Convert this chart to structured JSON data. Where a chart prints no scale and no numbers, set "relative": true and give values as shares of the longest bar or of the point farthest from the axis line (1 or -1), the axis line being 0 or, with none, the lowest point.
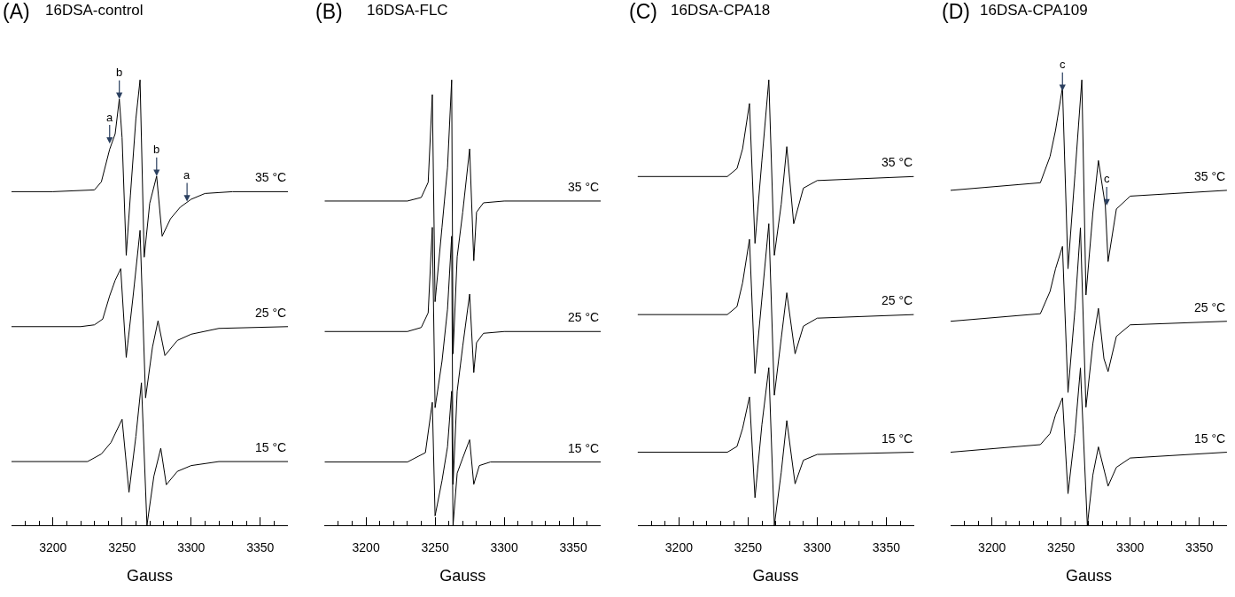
{
  "chart_data": [
    {
      "type": "line",
      "title": "16DSA-control",
      "xlabel": "Gauss",
      "relative": true,
      "xlim": [
        3170,
        3370
      ],
      "legend": false,
      "tick_labels": "x",
      "xticks": [
        {
          "value": 3180,
          "label": null
        },
        {
          "value": 3190,
          "label": null
        },
        3200,
        {
          "value": 3210,
          "label": null
        },
        {
          "value": 3220,
          "label": null
        },
        {
          "value": 3230,
          "label": null
        },
        {
          "value": 3240,
          "label": null
        },
        3250,
        {
          "value": 3260,
          "label": null
        },
        {
          "value": 3270,
          "label": null
        },
        {
          "value": 3280,
          "label": null
        },
        {
          "value": 3290,
          "label": null
        },
        3300,
        {
          "value": 3310,
          "label": null
        },
        {
          "value": 3320,
          "label": null
        },
        {
          "value": 3330,
          "label": null
        },
        {
          "value": 3340,
          "label": null
        },
        3350,
        {
          "value": 3360,
          "label": null
        }
      ],
      "annotations": [
        "(A)",
        {
          "text": "a",
          "x": 3241,
          "y": 0.857
        },
        {
          "text": "b",
          "x": 3248,
          "y": 0.957
        },
        {
          "text": "b",
          "x": 3275,
          "y": 0.784
        },
        {
          "text": "a",
          "x": 3297,
          "y": 0.727
        }
      ],
      "series": [
        {
          "name": "35 °C",
          "color": "#000000",
          "x": [
            3170,
            3200,
            3230,
            3235,
            3241,
            3245,
            3248,
            3250,
            3253,
            3256,
            3260,
            3263,
            3266,
            3270,
            3275,
            3279,
            3285,
            3292,
            3300,
            3310,
            3330,
            3370
          ],
          "values": [
            0.749,
            0.749,
            0.753,
            0.771,
            0.844,
            0.879,
            0.957,
            0.87,
            0.606,
            0.74,
            0.913,
            1.0,
            0.602,
            0.723,
            0.784,
            0.649,
            0.688,
            0.714,
            0.732,
            0.745,
            0.749,
            0.749
          ]
        },
        {
          "name": "25 °C",
          "color": "#000000",
          "x": [
            3170,
            3220,
            3230,
            3236,
            3241,
            3245,
            3249,
            3253,
            3258,
            3263,
            3267,
            3272,
            3276,
            3281,
            3290,
            3300,
            3320,
            3370
          ],
          "values": [
            0.446,
            0.446,
            0.45,
            0.463,
            0.515,
            0.55,
            0.576,
            0.377,
            0.515,
            0.662,
            0.286,
            0.4,
            0.459,
            0.381,
            0.415,
            0.429,
            0.442,
            0.446
          ]
        },
        {
          "name": "15 °C",
          "color": "#000000",
          "x": [
            3170,
            3225,
            3235,
            3242,
            3250,
            3255,
            3260,
            3264,
            3268,
            3273,
            3278,
            3282,
            3290,
            3300,
            3320,
            3370
          ],
          "values": [
            0.143,
            0.143,
            0.16,
            0.186,
            0.238,
            0.074,
            0.2,
            0.32,
            0.0,
            0.11,
            0.173,
            0.091,
            0.121,
            0.134,
            0.143,
            0.143
          ]
        }
      ]
    },
    {
      "type": "line",
      "title": "16DSA-FLC",
      "xlabel": "Gauss",
      "relative": true,
      "xlim": [
        3170,
        3370
      ],
      "legend": false,
      "tick_labels": "x",
      "xticks": [
        {
          "value": 3180,
          "label": null
        },
        {
          "value": 3190,
          "label": null
        },
        3200,
        {
          "value": 3210,
          "label": null
        },
        {
          "value": 3220,
          "label": null
        },
        {
          "value": 3230,
          "label": null
        },
        {
          "value": 3240,
          "label": null
        },
        3250,
        {
          "value": 3260,
          "label": null
        },
        {
          "value": 3270,
          "label": null
        },
        {
          "value": 3280,
          "label": null
        },
        {
          "value": 3290,
          "label": null
        },
        3300,
        {
          "value": 3310,
          "label": null
        },
        {
          "value": 3320,
          "label": null
        },
        {
          "value": 3330,
          "label": null
        },
        {
          "value": 3340,
          "label": null
        },
        3350,
        {
          "value": 3360,
          "label": null
        }
      ],
      "annotations": [
        "(B)"
      ],
      "series": [
        {
          "name": "35 °C",
          "color": "#000000",
          "x": [
            3170,
            3230,
            3240,
            3245,
            3248,
            3250,
            3255,
            3259,
            3262,
            3263,
            3266,
            3270,
            3275,
            3278,
            3280,
            3285,
            3300,
            3370
          ],
          "values": [
            0.728,
            0.728,
            0.736,
            0.77,
            0.967,
            0.502,
            0.669,
            0.803,
            1.0,
            0.385,
            0.603,
            0.703,
            0.845,
            0.594,
            0.703,
            0.724,
            0.728,
            0.728
          ]
        },
        {
          "name": "25 °C",
          "color": "#000000",
          "x": [
            3170,
            3230,
            3240,
            3245,
            3248,
            3250,
            3255,
            3259,
            3262,
            3263,
            3266,
            3270,
            3275,
            3278,
            3280,
            3285,
            3300,
            3370
          ],
          "values": [
            0.435,
            0.435,
            0.444,
            0.477,
            0.669,
            0.264,
            0.368,
            0.485,
            0.649,
            0.092,
            0.301,
            0.402,
            0.519,
            0.343,
            0.41,
            0.431,
            0.435,
            0.435
          ]
        },
        {
          "name": "15 °C",
          "color": "#000000",
          "x": [
            3170,
            3230,
            3243,
            3248,
            3250,
            3255,
            3259,
            3262,
            3263,
            3266,
            3270,
            3275,
            3278,
            3282,
            3290,
            3370
          ],
          "values": [
            0.142,
            0.142,
            0.163,
            0.276,
            0.021,
            0.1,
            0.176,
            0.301,
            0.0,
            0.117,
            0.151,
            0.192,
            0.092,
            0.134,
            0.142,
            0.142
          ]
        }
      ]
    },
    {
      "type": "line",
      "title": "16DSA-CPA18",
      "xlabel": "Gauss",
      "relative": true,
      "xlim": [
        3170,
        3370
      ],
      "legend": false,
      "tick_labels": "x",
      "xticks": [
        {
          "value": 3180,
          "label": null
        },
        {
          "value": 3190,
          "label": null
        },
        3200,
        {
          "value": 3210,
          "label": null
        },
        {
          "value": 3220,
          "label": null
        },
        {
          "value": 3230,
          "label": null
        },
        {
          "value": 3240,
          "label": null
        },
        3250,
        {
          "value": 3260,
          "label": null
        },
        {
          "value": 3270,
          "label": null
        },
        {
          "value": 3280,
          "label": null
        },
        {
          "value": 3290,
          "label": null
        },
        3300,
        {
          "value": 3310,
          "label": null
        },
        {
          "value": 3320,
          "label": null
        },
        {
          "value": 3330,
          "label": null
        },
        {
          "value": 3340,
          "label": null
        },
        3350,
        {
          "value": 3360,
          "label": null
        }
      ],
      "annotations": [
        "(C)"
      ],
      "series": [
        {
          "name": "35 °C",
          "color": "#000000",
          "x": [
            3170,
            3235,
            3242,
            3246,
            3251,
            3255,
            3260,
            3265,
            3269,
            3274,
            3278,
            3283,
            3290,
            3300,
            3370
          ],
          "values": [
            0.783,
            0.783,
            0.801,
            0.845,
            0.947,
            0.633,
            0.819,
            1.0,
            0.606,
            0.721,
            0.85,
            0.677,
            0.757,
            0.774,
            0.783
          ]
        },
        {
          "name": "25 °C",
          "color": "#000000",
          "x": [
            3170,
            3235,
            3242,
            3246,
            3251,
            3255,
            3260,
            3265,
            3269,
            3274,
            3278,
            3284,
            3290,
            3300,
            3370
          ],
          "values": [
            0.473,
            0.473,
            0.491,
            0.544,
            0.642,
            0.341,
            0.509,
            0.677,
            0.292,
            0.42,
            0.522,
            0.385,
            0.447,
            0.465,
            0.473
          ]
        },
        {
          "name": "15 °C",
          "color": "#000000",
          "x": [
            3170,
            3235,
            3242,
            3246,
            3251,
            3255,
            3260,
            3265,
            3269,
            3274,
            3278,
            3284,
            3290,
            3300,
            3370
          ],
          "values": [
            0.164,
            0.164,
            0.177,
            0.217,
            0.288,
            0.062,
            0.226,
            0.354,
            0.0,
            0.119,
            0.235,
            0.093,
            0.146,
            0.159,
            0.164
          ]
        }
      ]
    },
    {
      "type": "line",
      "title": "16DSA-CPA109",
      "xlabel": "Gauss",
      "relative": true,
      "xlim": [
        3170,
        3370
      ],
      "legend": false,
      "tick_labels": "x",
      "xticks": [
        {
          "value": 3180,
          "label": null
        },
        {
          "value": 3190,
          "label": null
        },
        3200,
        {
          "value": 3210,
          "label": null
        },
        {
          "value": 3220,
          "label": null
        },
        {
          "value": 3230,
          "label": null
        },
        {
          "value": 3240,
          "label": null
        },
        3250,
        {
          "value": 3260,
          "label": null
        },
        {
          "value": 3270,
          "label": null
        },
        {
          "value": 3280,
          "label": null
        },
        {
          "value": 3290,
          "label": null
        },
        3300,
        {
          "value": 3310,
          "label": null
        },
        {
          "value": 3320,
          "label": null
        },
        {
          "value": 3330,
          "label": null
        },
        {
          "value": 3340,
          "label": null
        },
        3350,
        {
          "value": 3360,
          "label": null
        }
      ],
      "annotations": [
        "(D)",
        {
          "text": "c",
          "x": 3251,
          "y": 0.975
        },
        {
          "text": "c",
          "x": 3283,
          "y": 0.718
        }
      ],
      "series": [
        {
          "name": "35 °C",
          "color": "#000000",
          "x": [
            3170,
            3235,
            3242,
            3246,
            3251,
            3255,
            3260,
            3265,
            3268,
            3273,
            3277,
            3282,
            3284,
            3290,
            3300,
            3370
          ],
          "values": [
            0.752,
            0.769,
            0.828,
            0.887,
            0.983,
            0.576,
            0.786,
            1.0,
            0.517,
            0.702,
            0.819,
            0.718,
            0.592,
            0.71,
            0.739,
            0.752
          ]
        },
        {
          "name": "25 °C",
          "color": "#000000",
          "x": [
            3170,
            3235,
            3242,
            3246,
            3251,
            3255,
            3260,
            3264,
            3268,
            3273,
            3277,
            3281,
            3284,
            3290,
            3300,
            3370
          ],
          "values": [
            0.458,
            0.475,
            0.525,
            0.576,
            0.626,
            0.298,
            0.483,
            0.668,
            0.265,
            0.408,
            0.487,
            0.374,
            0.345,
            0.424,
            0.45,
            0.458
          ]
        },
        {
          "name": "15 °C",
          "color": "#000000",
          "x": [
            3170,
            3235,
            3242,
            3246,
            3251,
            3255,
            3260,
            3264,
            3269,
            3273,
            3277,
            3284,
            3290,
            3300,
            3370
          ],
          "values": [
            0.164,
            0.181,
            0.206,
            0.248,
            0.286,
            0.071,
            0.206,
            0.353,
            0.0,
            0.113,
            0.176,
            0.088,
            0.13,
            0.151,
            0.164
          ]
        }
      ]
    }
  ]
}
